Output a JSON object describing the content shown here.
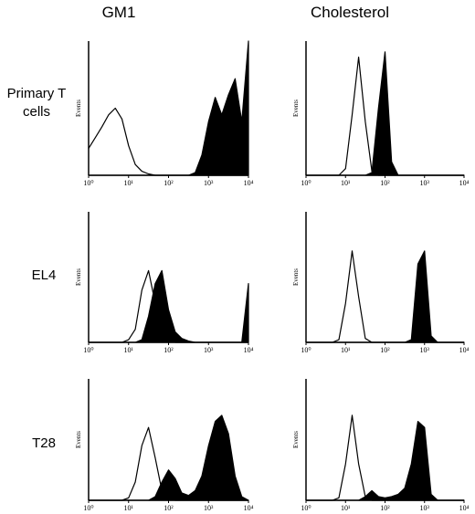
{
  "columns": [
    "GM1",
    "Cholesterol"
  ],
  "rows": [
    "Primary T cells",
    "EL4",
    "T28"
  ],
  "chart_data": [
    {
      "type": "histogram-overlay",
      "ylabel": "Events",
      "xlog": true,
      "xlim": [
        1,
        10000
      ],
      "ylim": [
        0,
        100
      ],
      "xticks": [
        {
          "value": 1,
          "label": "10⁰"
        },
        {
          "value": 10,
          "label": "10¹"
        },
        {
          "value": 100,
          "label": "10²"
        },
        {
          "value": 1000,
          "label": "10³"
        },
        {
          "value": 10000,
          "label": "10⁴"
        }
      ],
      "x": [
        1,
        1.47,
        2.15,
        3.16,
        4.64,
        6.81,
        10,
        14.7,
        21.5,
        31.6,
        46.4,
        68.1,
        100,
        147,
        215,
        316,
        464,
        681,
        1000,
        1470,
        2150,
        3160,
        4640,
        6810,
        10000
      ],
      "series": [
        {
          "color": "#000000",
          "filled": false,
          "values": [
            20,
            28,
            36,
            45,
            50,
            42,
            22,
            8,
            3,
            1,
            0,
            0,
            0,
            0,
            0,
            0,
            0,
            0,
            0,
            0,
            0,
            0,
            0,
            0,
            0
          ]
        },
        {
          "color": "#000000",
          "filled": true,
          "values": [
            0,
            0,
            0,
            0,
            0,
            0,
            0,
            0,
            0,
            0,
            0,
            0,
            0,
            0,
            0,
            0,
            2,
            15,
            40,
            58,
            45,
            60,
            72,
            40,
            100
          ]
        }
      ]
    },
    {
      "type": "histogram-overlay",
      "ylabel": "Events",
      "xlog": true,
      "xlim": [
        1,
        10000
      ],
      "ylim": [
        0,
        100
      ],
      "xticks": [
        {
          "value": 1,
          "label": "10⁰"
        },
        {
          "value": 10,
          "label": "10¹"
        },
        {
          "value": 100,
          "label": "10²"
        },
        {
          "value": 1000,
          "label": "10³"
        },
        {
          "value": 10000,
          "label": "10⁴"
        }
      ],
      "x": [
        1,
        1.47,
        2.15,
        3.16,
        4.64,
        6.81,
        10,
        14.7,
        21.5,
        31.6,
        46.4,
        68.1,
        100,
        147,
        215,
        316,
        464,
        681,
        1000,
        1470,
        2150,
        3160,
        4640,
        6810,
        10000
      ],
      "series": [
        {
          "color": "#000000",
          "filled": false,
          "values": [
            0,
            0,
            0,
            0,
            0,
            0,
            5,
            45,
            88,
            40,
            3,
            0,
            0,
            0,
            0,
            0,
            0,
            0,
            0,
            0,
            0,
            0,
            0,
            0,
            0
          ]
        },
        {
          "color": "#000000",
          "filled": true,
          "values": [
            0,
            0,
            0,
            0,
            0,
            0,
            0,
            0,
            0,
            0,
            2,
            50,
            92,
            10,
            0,
            0,
            0,
            0,
            0,
            0,
            0,
            0,
            0,
            0,
            0
          ]
        }
      ]
    },
    {
      "type": "histogram-overlay",
      "ylabel": "Events",
      "xlog": true,
      "xlim": [
        1,
        10000
      ],
      "ylim": [
        0,
        100
      ],
      "xticks": [
        {
          "value": 1,
          "label": "10⁰"
        },
        {
          "value": 10,
          "label": "10¹"
        },
        {
          "value": 100,
          "label": "10²"
        },
        {
          "value": 1000,
          "label": "10³"
        },
        {
          "value": 10000,
          "label": "10⁴"
        }
      ],
      "x": [
        1,
        1.47,
        2.15,
        3.16,
        4.64,
        6.81,
        10,
        14.7,
        21.5,
        31.6,
        46.4,
        68.1,
        100,
        147,
        215,
        316,
        464,
        681,
        1000,
        1470,
        2150,
        3160,
        4640,
        6810,
        10000
      ],
      "series": [
        {
          "color": "#000000",
          "filled": false,
          "values": [
            0,
            0,
            0,
            0,
            0,
            0,
            2,
            10,
            40,
            55,
            30,
            8,
            2,
            0,
            0,
            0,
            0,
            0,
            0,
            0,
            0,
            0,
            0,
            0,
            0
          ]
        },
        {
          "color": "#000000",
          "filled": true,
          "values": [
            0,
            0,
            0,
            0,
            0,
            0,
            0,
            0,
            2,
            20,
            45,
            55,
            25,
            8,
            3,
            1,
            0,
            0,
            0,
            0,
            0,
            0,
            0,
            0,
            45
          ]
        }
      ]
    },
    {
      "type": "histogram-overlay",
      "ylabel": "Events",
      "xlog": true,
      "xlim": [
        1,
        10000
      ],
      "ylim": [
        0,
        100
      ],
      "xticks": [
        {
          "value": 1,
          "label": "10⁰"
        },
        {
          "value": 10,
          "label": "10¹"
        },
        {
          "value": 100,
          "label": "10²"
        },
        {
          "value": 1000,
          "label": "10³"
        },
        {
          "value": 10000,
          "label": "10⁴"
        }
      ],
      "x": [
        1,
        1.47,
        2.15,
        3.16,
        4.64,
        6.81,
        10,
        14.7,
        21.5,
        31.6,
        46.4,
        68.1,
        100,
        147,
        215,
        316,
        464,
        681,
        1000,
        1470,
        2150,
        3160,
        4640,
        6810,
        10000
      ],
      "series": [
        {
          "color": "#000000",
          "filled": false,
          "values": [
            0,
            0,
            0,
            0,
            0,
            2,
            30,
            70,
            35,
            3,
            0,
            0,
            0,
            0,
            0,
            0,
            0,
            0,
            0,
            0,
            0,
            0,
            0,
            0,
            0
          ]
        },
        {
          "color": "#000000",
          "filled": true,
          "values": [
            0,
            0,
            0,
            0,
            0,
            0,
            0,
            0,
            0,
            0,
            0,
            0,
            0,
            0,
            0,
            0,
            2,
            60,
            70,
            5,
            0,
            0,
            0,
            0,
            0
          ]
        }
      ]
    },
    {
      "type": "histogram-overlay",
      "ylabel": "Events",
      "xlog": true,
      "xlim": [
        1,
        10000
      ],
      "ylim": [
        0,
        100
      ],
      "xticks": [
        {
          "value": 1,
          "label": "10⁰"
        },
        {
          "value": 10,
          "label": "10¹"
        },
        {
          "value": 100,
          "label": "10²"
        },
        {
          "value": 1000,
          "label": "10³"
        },
        {
          "value": 10000,
          "label": "10⁴"
        }
      ],
      "x": [
        1,
        1.47,
        2.15,
        3.16,
        4.64,
        6.81,
        10,
        14.7,
        21.5,
        31.6,
        46.4,
        68.1,
        100,
        147,
        215,
        316,
        464,
        681,
        1000,
        1470,
        2150,
        3160,
        4640,
        6810,
        10000
      ],
      "series": [
        {
          "color": "#000000",
          "filled": false,
          "values": [
            0,
            0,
            0,
            0,
            0,
            0,
            2,
            15,
            45,
            60,
            35,
            8,
            2,
            0,
            0,
            0,
            0,
            0,
            0,
            0,
            0,
            0,
            0,
            0,
            0
          ]
        },
        {
          "color": "#000000",
          "filled": true,
          "values": [
            0,
            0,
            0,
            0,
            0,
            0,
            0,
            0,
            0,
            0,
            3,
            15,
            25,
            18,
            6,
            4,
            8,
            20,
            45,
            65,
            70,
            55,
            20,
            3,
            0
          ]
        }
      ]
    },
    {
      "type": "histogram-overlay",
      "ylabel": "Events",
      "xlog": true,
      "xlim": [
        1,
        10000
      ],
      "ylim": [
        0,
        100
      ],
      "xticks": [
        {
          "value": 1,
          "label": "10⁰"
        },
        {
          "value": 10,
          "label": "10¹"
        },
        {
          "value": 100,
          "label": "10²"
        },
        {
          "value": 1000,
          "label": "10³"
        },
        {
          "value": 10000,
          "label": "10⁴"
        }
      ],
      "x": [
        1,
        1.47,
        2.15,
        3.16,
        4.64,
        6.81,
        10,
        14.7,
        21.5,
        31.6,
        46.4,
        68.1,
        100,
        147,
        215,
        316,
        464,
        681,
        1000,
        1470,
        2150,
        3160,
        4640,
        6810,
        10000
      ],
      "series": [
        {
          "color": "#000000",
          "filled": false,
          "values": [
            0,
            0,
            0,
            0,
            0,
            2,
            30,
            70,
            30,
            3,
            0,
            0,
            0,
            0,
            0,
            0,
            0,
            0,
            0,
            0,
            0,
            0,
            0,
            0,
            0
          ]
        },
        {
          "color": "#000000",
          "filled": true,
          "values": [
            0,
            0,
            0,
            0,
            0,
            0,
            0,
            0,
            0,
            3,
            8,
            3,
            2,
            3,
            5,
            10,
            30,
            65,
            60,
            5,
            0,
            0,
            0,
            0,
            0
          ]
        }
      ]
    }
  ]
}
